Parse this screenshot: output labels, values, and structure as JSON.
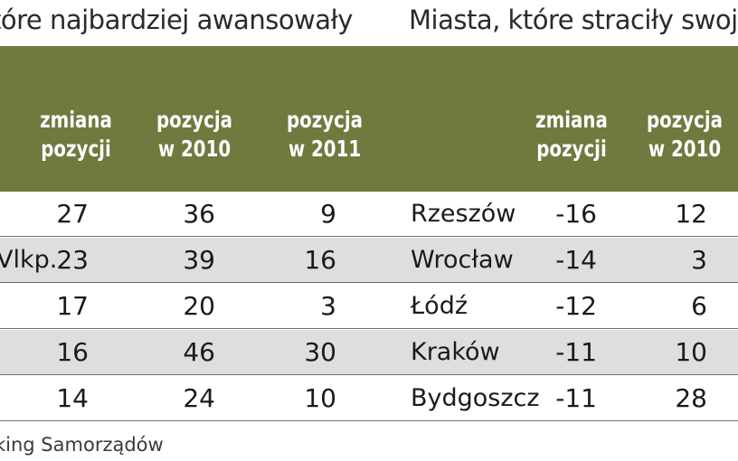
{
  "titles": {
    "left": "tóre najbardziej awansowały",
    "right": "Miasta, które straciły swoją"
  },
  "left_table": {
    "headers": [
      {
        "line1": "zmiana",
        "line2": "pozycji"
      },
      {
        "line1": "pozycja",
        "line2": "w 2010"
      },
      {
        "line1": "pozycja",
        "line2": "w 2011"
      }
    ],
    "rows": [
      {
        "city": "",
        "change": "27",
        "pos2010": "36",
        "pos2011": "9"
      },
      {
        "city": "Vlkp.",
        "change": "23",
        "pos2010": "39",
        "pos2011": "16"
      },
      {
        "city": "",
        "change": "17",
        "pos2010": "20",
        "pos2011": "3"
      },
      {
        "city": "",
        "change": "16",
        "pos2010": "46",
        "pos2011": "30"
      },
      {
        "city": "",
        "change": "14",
        "pos2010": "24",
        "pos2011": "10"
      }
    ]
  },
  "right_table": {
    "headers": [
      {
        "line1": "zmiana",
        "line2": "pozycji"
      },
      {
        "line1": "pozycja",
        "line2": "w 2010"
      }
    ],
    "rows": [
      {
        "city": "Rzeszów",
        "change": "-16",
        "pos2010": "12"
      },
      {
        "city": "Wrocław",
        "change": "-14",
        "pos2010": "3"
      },
      {
        "city": "Łódź",
        "change": "-12",
        "pos2010": "6"
      },
      {
        "city": "Kraków",
        "change": "-11",
        "pos2010": "10"
      },
      {
        "city": "Bydgoszcz",
        "change": "-11",
        "pos2010": "28"
      }
    ]
  },
  "footer": "king Samorządów",
  "colors": {
    "header_bg": "#6e7a3e",
    "alt_row_bg": "#dededf"
  }
}
